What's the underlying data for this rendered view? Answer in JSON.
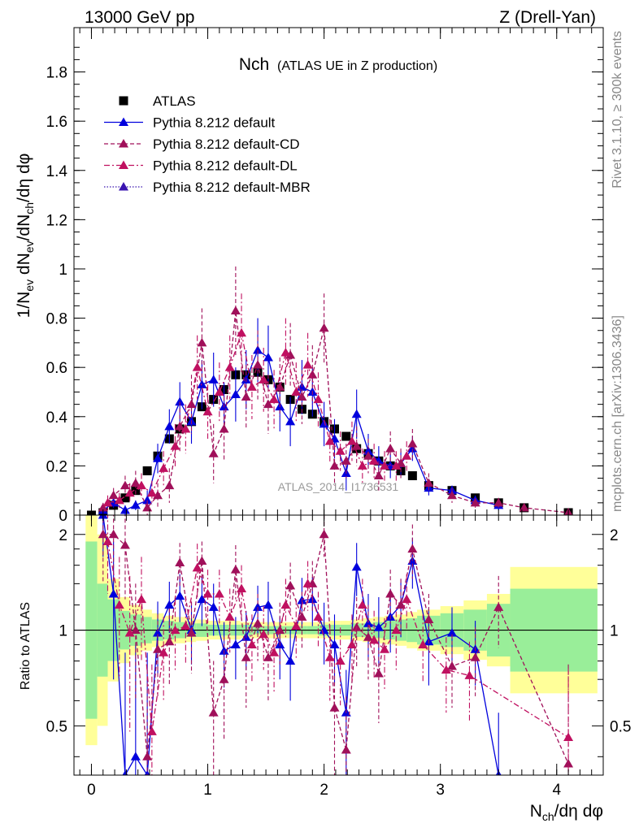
{
  "header": {
    "left": "13000 GeV pp",
    "right": "Z (Drell-Yan)"
  },
  "side_labels": {
    "rivet": "Rivet 3.1.10, ≥ 300k events",
    "mcplots": "mcplots.cern.ch [arXiv:1306.3436]"
  },
  "watermark": "ATLAS_2014_I1736531",
  "chart_data": [
    {
      "type": "scatter",
      "panel": "main",
      "title_main": "Nch",
      "title_sub": "(ATLAS UE in Z production)",
      "xlabel": "N_ch/dη dφ",
      "ylabel": "1/N_ev dN_ev/dN_ch/dη dφ",
      "xlim": [
        -0.15,
        4.4
      ],
      "ylim": [
        0,
        1.98
      ],
      "yticks": [
        "0",
        "0.2",
        "0.4",
        "0.6",
        "0.8",
        "1",
        "1.2",
        "1.4",
        "1.6",
        "1.8"
      ],
      "legend_position": "top-left",
      "series": [
        {
          "name": "ATLAS",
          "color": "#000000",
          "marker": "square",
          "x": [
            0.0,
            0.1,
            0.19,
            0.29,
            0.38,
            0.48,
            0.57,
            0.67,
            0.76,
            0.86,
            0.95,
            1.05,
            1.14,
            1.24,
            1.33,
            1.43,
            1.52,
            1.62,
            1.71,
            1.81,
            1.9,
            2.0,
            2.09,
            2.19,
            2.28,
            2.38,
            2.47,
            2.57,
            2.66,
            2.76,
            2.9,
            3.1,
            3.3,
            3.5,
            3.72,
            4.1
          ],
          "y": [
            0.0,
            0.01,
            0.04,
            0.07,
            0.1,
            0.18,
            0.24,
            0.31,
            0.35,
            0.38,
            0.44,
            0.47,
            0.51,
            0.57,
            0.57,
            0.58,
            0.55,
            0.52,
            0.47,
            0.43,
            0.41,
            0.38,
            0.35,
            0.32,
            0.27,
            0.25,
            0.22,
            0.2,
            0.18,
            0.16,
            0.12,
            0.1,
            0.07,
            0.05,
            0.03,
            0.01
          ]
        },
        {
          "name": "Pythia 8.212 default",
          "color": "#0000dd",
          "marker": "triangle",
          "style": "solid",
          "x": [
            0.1,
            0.19,
            0.29,
            0.38,
            0.48,
            0.57,
            0.67,
            0.76,
            0.86,
            0.95,
            1.05,
            1.14,
            1.24,
            1.33,
            1.43,
            1.52,
            1.62,
            1.71,
            1.81,
            1.9,
            2.0,
            2.09,
            2.19,
            2.28,
            2.38,
            2.47,
            2.57,
            2.66,
            2.76,
            2.9,
            3.1,
            3.3,
            3.5
          ],
          "y": [
            0.02,
            0.05,
            0.02,
            0.04,
            0.06,
            0.23,
            0.36,
            0.46,
            0.38,
            0.53,
            0.55,
            0.44,
            0.49,
            0.55,
            0.67,
            0.64,
            0.44,
            0.38,
            0.52,
            0.5,
            0.37,
            0.31,
            0.17,
            0.41,
            0.26,
            0.22,
            0.2,
            0.21,
            0.27,
            0.11,
            0.1,
            0.06,
            0.04
          ],
          "err": [
            0.02,
            0.02,
            0.02,
            0.02,
            0.04,
            0.06,
            0.07,
            0.08,
            0.09,
            0.1,
            0.11,
            0.1,
            0.11,
            0.12,
            0.13,
            0.13,
            0.1,
            0.1,
            0.11,
            0.1,
            0.09,
            0.08,
            0.07,
            0.1,
            0.07,
            0.06,
            0.05,
            0.05,
            0.05,
            0.03,
            0.02,
            0.02,
            0.02
          ]
        },
        {
          "name": "Pythia 8.212 default-CD",
          "color": "#a0105a",
          "marker": "triangle",
          "style": "dashed",
          "x": [
            0.1,
            0.19,
            0.29,
            0.38,
            0.48,
            0.57,
            0.67,
            0.76,
            0.86,
            0.95,
            1.05,
            1.14,
            1.24,
            1.33,
            1.43,
            1.52,
            1.62,
            1.71,
            1.81,
            1.9,
            2.0,
            2.09,
            2.19,
            2.28,
            2.38,
            2.47,
            2.57,
            2.66,
            2.76,
            2.9,
            3.1,
            3.3,
            3.5,
            3.72,
            4.1
          ],
          "y": [
            0.03,
            0.08,
            0.12,
            0.13,
            0.03,
            0.08,
            0.12,
            0.36,
            0.45,
            0.7,
            0.25,
            0.35,
            0.83,
            0.48,
            0.61,
            0.45,
            0.52,
            0.65,
            0.48,
            0.57,
            0.76,
            0.2,
            0.22,
            0.28,
            0.24,
            0.16,
            0.27,
            0.21,
            0.29,
            0.13,
            0.08,
            0.05,
            0.05,
            0.03,
            0.01
          ],
          "err": [
            0.02,
            0.03,
            0.04,
            0.05,
            0.03,
            0.05,
            0.07,
            0.1,
            0.12,
            0.14,
            0.12,
            0.13,
            0.18,
            0.13,
            0.14,
            0.12,
            0.12,
            0.13,
            0.11,
            0.12,
            0.14,
            0.08,
            0.07,
            0.08,
            0.07,
            0.06,
            0.07,
            0.06,
            0.06,
            0.04,
            0.03,
            0.02,
            0.02,
            0.01,
            0.01
          ]
        },
        {
          "name": "Pythia 8.212 default-DL",
          "color": "#c01060",
          "marker": "triangle",
          "style": "dashdot",
          "x": [
            0.14,
            0.24,
            0.33,
            0.43,
            0.52,
            0.62,
            0.72,
            0.81,
            0.91,
            1.0,
            1.1,
            1.19,
            1.29,
            1.38,
            1.48,
            1.57,
            1.67,
            1.76,
            1.86,
            1.95,
            2.05,
            2.14,
            2.24,
            2.33,
            2.43,
            2.52,
            2.62,
            2.71
          ],
          "y": [
            0.05,
            0.06,
            0.09,
            0.12,
            0.09,
            0.19,
            0.28,
            0.35,
            0.6,
            0.42,
            0.5,
            0.6,
            0.74,
            0.52,
            0.55,
            0.47,
            0.66,
            0.5,
            0.61,
            0.47,
            0.3,
            0.26,
            0.3,
            0.2,
            0.22,
            0.2,
            0.2,
            0.24
          ],
          "err": [
            0.03,
            0.03,
            0.04,
            0.05,
            0.05,
            0.07,
            0.09,
            0.1,
            0.13,
            0.11,
            0.12,
            0.13,
            0.16,
            0.13,
            0.13,
            0.12,
            0.14,
            0.12,
            0.13,
            0.11,
            0.09,
            0.08,
            0.08,
            0.07,
            0.07,
            0.06,
            0.06,
            0.06
          ]
        },
        {
          "name": "Pythia 8.212 default-MBR",
          "color": "#3a14b0",
          "marker": "triangle",
          "style": "dotted",
          "x": [],
          "y": []
        }
      ]
    },
    {
      "type": "scatter",
      "panel": "ratio",
      "ylabel": "Ratio to ATLAS",
      "xlabel": "N_ch/dη dφ",
      "xlim": [
        -0.15,
        4.4
      ],
      "ylim": [
        0.35,
        2.3
      ],
      "yticks": [
        "0.5",
        "1",
        "2"
      ],
      "xticks": [
        "0",
        "1",
        "2",
        "3",
        "4"
      ],
      "reference_line": 1,
      "bands": {
        "x_edges": [
          -0.05,
          0.05,
          0.14,
          0.24,
          0.33,
          0.43,
          0.52,
          0.62,
          0.71,
          0.81,
          0.9,
          1.0,
          1.09,
          1.19,
          1.28,
          1.38,
          1.47,
          1.57,
          1.66,
          1.76,
          1.85,
          1.95,
          2.04,
          2.14,
          2.23,
          2.33,
          2.42,
          2.52,
          2.61,
          2.71,
          2.8,
          3.0,
          3.2,
          3.4,
          3.6,
          4.35
        ],
        "inner": [
          1.9,
          1.4,
          1.25,
          1.15,
          1.12,
          1.1,
          1.08,
          1.07,
          1.06,
          1.05,
          1.05,
          1.04,
          1.04,
          1.04,
          1.04,
          1.03,
          1.03,
          1.03,
          1.03,
          1.03,
          1.03,
          1.04,
          1.04,
          1.04,
          1.05,
          1.05,
          1.06,
          1.07,
          1.08,
          1.09,
          1.11,
          1.13,
          1.16,
          1.21,
          1.35
        ],
        "outer": [
          2.3,
          2.0,
          1.45,
          1.27,
          1.2,
          1.16,
          1.13,
          1.11,
          1.1,
          1.09,
          1.08,
          1.07,
          1.07,
          1.07,
          1.06,
          1.06,
          1.06,
          1.06,
          1.06,
          1.06,
          1.06,
          1.06,
          1.07,
          1.07,
          1.08,
          1.09,
          1.1,
          1.11,
          1.12,
          1.14,
          1.16,
          1.19,
          1.24,
          1.3,
          1.58
        ]
      },
      "series": [
        {
          "name": "Pythia 8.212 default",
          "color": "#0000dd",
          "style": "solid",
          "x": [
            0.1,
            0.19,
            0.29,
            0.38,
            0.48,
            0.57,
            0.67,
            0.76,
            0.86,
            0.95,
            1.05,
            1.14,
            1.24,
            1.33,
            1.43,
            1.52,
            1.62,
            1.71,
            1.81,
            1.9,
            2.0,
            2.09,
            2.19,
            2.28,
            2.38,
            2.47,
            2.57,
            2.66,
            2.76,
            2.9,
            3.1,
            3.3,
            3.5
          ],
          "y": [
            2.3,
            1.3,
            0.35,
            0.4,
            0.35,
            0.98,
            1.2,
            1.28,
            1.0,
            1.25,
            1.18,
            0.86,
            0.9,
            0.95,
            1.18,
            1.2,
            0.9,
            0.8,
            1.24,
            1.25,
            1.0,
            0.9,
            0.55,
            1.58,
            1.05,
            1.02,
            1.1,
            1.2,
            1.65,
            0.92,
            0.98,
            0.87,
            0.35
          ],
          "err": [
            0.6,
            0.6,
            0.5,
            0.5,
            0.5,
            0.25,
            0.22,
            0.22,
            0.22,
            0.22,
            0.22,
            0.2,
            0.2,
            0.2,
            0.2,
            0.22,
            0.2,
            0.2,
            0.22,
            0.22,
            0.22,
            0.22,
            0.2,
            0.3,
            0.25,
            0.25,
            0.25,
            0.25,
            0.3,
            0.25,
            0.2,
            0.2,
            0.2
          ]
        },
        {
          "name": "Pythia 8.212 default-CD",
          "color": "#a0105a",
          "style": "dashed",
          "x": [
            0.1,
            0.19,
            0.29,
            0.38,
            0.48,
            0.57,
            0.67,
            0.76,
            0.86,
            0.95,
            1.05,
            1.14,
            1.24,
            1.33,
            1.43,
            1.52,
            1.62,
            1.71,
            1.81,
            1.9,
            2.0,
            2.09,
            2.19,
            2.28,
            2.38,
            2.47,
            2.57,
            2.66,
            2.76,
            2.9,
            3.1,
            3.3,
            3.5,
            4.1
          ],
          "y": [
            2.0,
            2.0,
            1.85,
            1.0,
            0.4,
            0.87,
            0.92,
            1.63,
            0.98,
            1.65,
            0.55,
            0.7,
            1.55,
            0.82,
            1.05,
            0.82,
            1.0,
            1.38,
            1.1,
            1.4,
            2.0,
            0.57,
            0.42,
            1.02,
            0.95,
            0.73,
            1.3,
            1.2,
            1.8,
            1.08,
            0.77,
            0.82,
            1.18,
            0.38
          ],
          "err": [
            0.6,
            0.6,
            0.6,
            0.4,
            0.35,
            0.25,
            0.25,
            0.25,
            0.25,
            0.25,
            0.25,
            0.25,
            0.3,
            0.25,
            0.25,
            0.22,
            0.22,
            0.25,
            0.22,
            0.25,
            0.3,
            0.22,
            0.2,
            0.25,
            0.25,
            0.22,
            0.25,
            0.25,
            0.35,
            0.22,
            0.2,
            0.2,
            0.3,
            0.4
          ]
        },
        {
          "name": "Pythia 8.212 default-DL",
          "color": "#c01060",
          "style": "dashdot",
          "x": [
            0.14,
            0.24,
            0.33,
            0.43,
            0.52,
            0.62,
            0.72,
            0.81,
            0.91,
            1.0,
            1.1,
            1.19,
            1.29,
            1.38,
            1.48,
            1.57,
            1.67,
            1.76,
            1.86,
            1.95,
            2.05,
            2.14,
            2.24,
            2.33,
            2.43,
            2.52,
            2.62,
            2.71,
            2.85,
            3.05,
            3.25,
            4.1
          ],
          "y": [
            1.9,
            1.2,
            0.98,
            1.25,
            0.48,
            0.85,
            1.0,
            1.03,
            1.57,
            1.3,
            1.3,
            1.1,
            1.35,
            0.9,
            0.97,
            0.85,
            1.2,
            1.03,
            1.4,
            1.1,
            0.82,
            0.8,
            0.9,
            1.2,
            0.93,
            0.87,
            1.0,
            1.25,
            0.9,
            0.75,
            0.72,
            0.46
          ],
          "err": [
            0.6,
            0.5,
            0.5,
            0.45,
            0.3,
            0.25,
            0.25,
            0.25,
            0.3,
            0.25,
            0.25,
            0.25,
            0.25,
            0.22,
            0.22,
            0.22,
            0.25,
            0.22,
            0.25,
            0.22,
            0.22,
            0.22,
            0.22,
            0.25,
            0.22,
            0.22,
            0.25,
            0.25,
            0.22,
            0.2,
            0.2,
            0.3
          ]
        }
      ]
    }
  ]
}
